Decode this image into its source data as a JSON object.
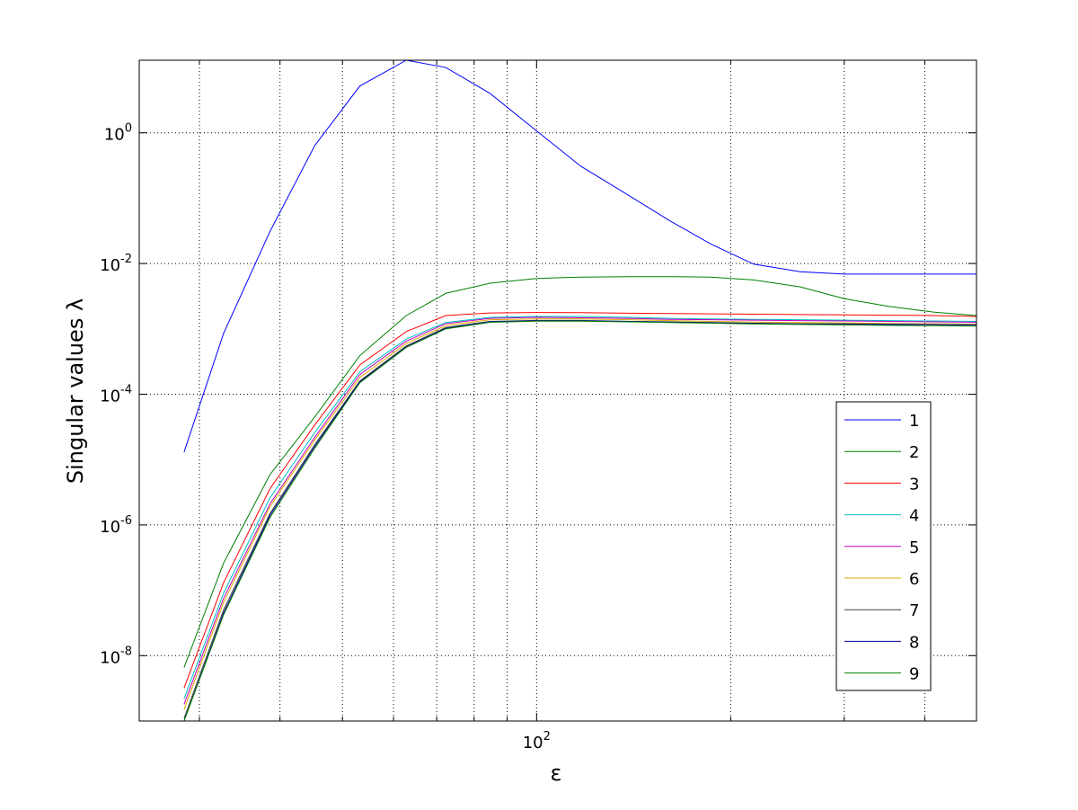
{
  "chart_data": {
    "type": "line",
    "xscale": "log",
    "yscale": "log",
    "grid": true,
    "legend_position": "right",
    "xlabel": "ε",
    "ylabel": "Singular values λ",
    "xlim": [
      24.2,
      481
    ],
    "ylim": [
      1e-09,
      12.9
    ],
    "xticks": [
      {
        "value": 100,
        "label": "10^2"
      }
    ],
    "xminorticks": [
      30,
      40,
      50,
      60,
      70,
      80,
      90,
      200,
      300,
      400
    ],
    "yticks": [
      {
        "value": 1e-08,
        "label": "10^-8"
      },
      {
        "value": 1e-06,
        "label": "10^-6"
      },
      {
        "value": 0.0001,
        "label": "10^-4"
      },
      {
        "value": 0.01,
        "label": "10^-2"
      },
      {
        "value": 1,
        "label": "10^0"
      }
    ],
    "x": [
      28.4,
      32.7,
      38.6,
      45.3,
      53.2,
      62.8,
      72.3,
      84.7,
      100,
      117,
      139,
      161,
      186,
      217,
      256,
      300,
      352,
      414,
      481
    ],
    "series": [
      {
        "name": "1",
        "color": "#0000ff",
        "values": [
          1.3e-05,
          0.00085,
          0.031,
          0.64,
          5.2,
          12.9,
          10,
          4.0,
          1.07,
          0.31,
          0.11,
          0.045,
          0.02,
          0.0098,
          0.0075,
          0.0069,
          0.0069,
          0.0069,
          0.0069
        ]
      },
      {
        "name": "2",
        "color": "#008000",
        "values": [
          6.6e-09,
          2.6e-07,
          5.9e-06,
          4.5e-05,
          0.00039,
          0.0016,
          0.0035,
          0.005,
          0.0059,
          0.0062,
          0.0063,
          0.0063,
          0.0062,
          0.0056,
          0.0044,
          0.0029,
          0.0022,
          0.0018,
          0.0016
        ]
      },
      {
        "name": "3",
        "color": "#ff0000",
        "values": [
          3.2e-09,
          1.3e-07,
          3.6e-06,
          3.4e-05,
          0.00028,
          0.00091,
          0.0016,
          0.00175,
          0.00178,
          0.00177,
          0.00174,
          0.00172,
          0.0017,
          0.00168,
          0.00166,
          0.00164,
          0.00162,
          0.0016,
          0.00155
        ]
      },
      {
        "name": "4",
        "color": "#00bfbf",
        "values": [
          2.2e-09,
          9e-08,
          2.6e-06,
          2.6e-05,
          0.00022,
          0.0007,
          0.00125,
          0.0015,
          0.00155,
          0.00155,
          0.0015,
          0.00145,
          0.00142,
          0.0014,
          0.00138,
          0.00136,
          0.00134,
          0.00132,
          0.0013
        ]
      },
      {
        "name": "5",
        "color": "#bf00bf",
        "values": [
          1.8e-09,
          7.5e-08,
          2.1e-06,
          2.2e-05,
          0.0002,
          0.00065,
          0.0012,
          0.00145,
          0.0015,
          0.00148,
          0.00145,
          0.0014,
          0.00138,
          0.00136,
          0.00134,
          0.00132,
          0.0013,
          0.00128,
          0.00126
        ]
      },
      {
        "name": "6",
        "color": "#e0a800",
        "values": [
          1.5e-09,
          6.5e-08,
          1.9e-06,
          2e-05,
          0.00018,
          0.0006,
          0.00112,
          0.00138,
          0.00142,
          0.00142,
          0.00138,
          0.00134,
          0.0013,
          0.00127,
          0.00125,
          0.00123,
          0.00121,
          0.0012,
          0.00118
        ]
      },
      {
        "name": "7",
        "color": "#404040",
        "values": [
          1.1e-09,
          5e-08,
          1.5e-06,
          1.7e-05,
          0.00016,
          0.00055,
          0.00105,
          0.0013,
          0.00135,
          0.00135,
          0.0013,
          0.00128,
          0.00125,
          0.00122,
          0.0012,
          0.0012,
          0.00118,
          0.00117,
          0.00115
        ]
      },
      {
        "name": "8",
        "color": "#0000a0",
        "values": [
          1e-09,
          4.5e-08,
          1.4e-06,
          1.6e-05,
          0.000155,
          0.00053,
          0.00102,
          0.00128,
          0.00133,
          0.00133,
          0.0013,
          0.00127,
          0.00124,
          0.00121,
          0.00119,
          0.00118,
          0.00117,
          0.00116,
          0.00115
        ]
      },
      {
        "name": "9",
        "color": "#008000",
        "values": [
          1e-09,
          4.2e-08,
          1.3e-06,
          1.5e-05,
          0.00015,
          0.00052,
          0.001,
          0.00126,
          0.00131,
          0.00131,
          0.00128,
          0.00125,
          0.00122,
          0.00119,
          0.00117,
          0.00115,
          0.00113,
          0.00112,
          0.0011
        ]
      }
    ]
  }
}
